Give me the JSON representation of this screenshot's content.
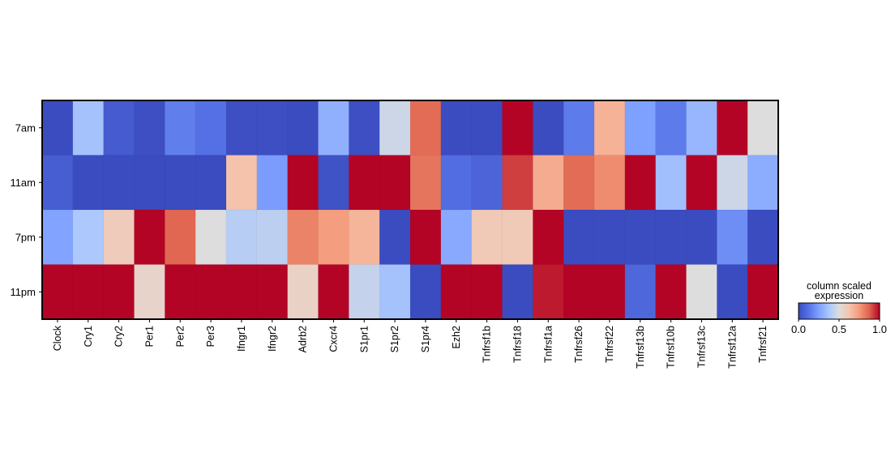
{
  "chart_data": {
    "type": "heatmap",
    "rows": [
      "7am",
      "11am",
      "7pm",
      "11pm"
    ],
    "columns": [
      "Clock",
      "Cry1",
      "Cry2",
      "Per1",
      "Per2",
      "Per3",
      "Ifngr1",
      "Ifngr2",
      "Adrb2",
      "Cxcr4",
      "S1pr1",
      "S1pr2",
      "S1pr4",
      "Ezh2",
      "Tnfrsf1b",
      "Tnfrsf18",
      "Tnfrsf1a",
      "Tnfrsf26",
      "Tnfrsf22",
      "Tnfrsf13b",
      "Tnfrsf10b",
      "Tnfrsf13c",
      "Tnfrsf12a",
      "Tnfrsf21"
    ],
    "values": [
      [
        0.0,
        0.36,
        0.05,
        0.01,
        0.16,
        0.12,
        0.01,
        0.01,
        0.0,
        0.3,
        0.01,
        0.46,
        0.85,
        0.0,
        0.0,
        1.0,
        0.0,
        0.15,
        0.68,
        0.25,
        0.15,
        0.32,
        1.0,
        0.5
      ],
      [
        0.06,
        0.0,
        0.0,
        0.0,
        0.0,
        0.0,
        0.63,
        0.24,
        1.0,
        0.02,
        1.0,
        1.0,
        0.83,
        0.11,
        0.08,
        0.92,
        0.7,
        0.85,
        0.78,
        1.0,
        0.35,
        1.0,
        0.46,
        0.29
      ],
      [
        0.26,
        0.38,
        0.59,
        1.0,
        0.86,
        0.5,
        0.41,
        0.42,
        0.8,
        0.74,
        0.67,
        0.0,
        1.0,
        0.28,
        0.6,
        0.6,
        1.0,
        0.0,
        0.0,
        0.0,
        0.0,
        0.0,
        0.2,
        0.0
      ],
      [
        1.0,
        1.0,
        1.0,
        0.55,
        1.0,
        1.0,
        1.0,
        1.0,
        0.56,
        1.0,
        0.44,
        0.36,
        0.0,
        1.0,
        1.0,
        0.0,
        0.97,
        1.0,
        1.0,
        0.09,
        1.0,
        0.5,
        0.0,
        1.0
      ]
    ],
    "colorbar": {
      "title_lines": [
        "column scaled",
        "expression"
      ],
      "ticks": [
        "0.0",
        "0.5",
        "1.0"
      ],
      "range": [
        0,
        1
      ],
      "colormap": "coolwarm",
      "colors": [
        "#3b4cc0",
        "#dddddd",
        "#b40426"
      ]
    }
  }
}
